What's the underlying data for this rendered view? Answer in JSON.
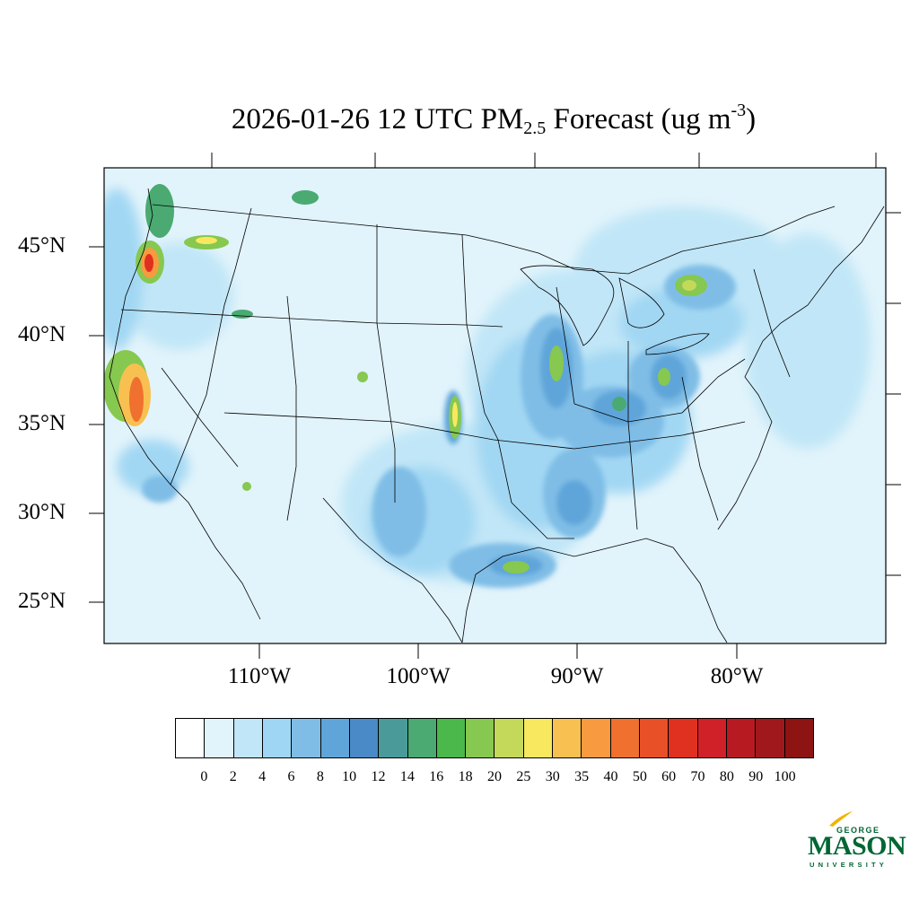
{
  "title": {
    "date_time": "2026-01-26 12 UTC PM",
    "sub": "2.5",
    "mid": " Forecast (ug m",
    "sup": "-3",
    "end": ")"
  },
  "lat_labels": [
    "45°N",
    "40°N",
    "35°N",
    "30°N",
    "25°N"
  ],
  "lon_labels": [
    "110°W",
    "100°W",
    "90°W",
    "80°W"
  ],
  "colorbar": {
    "colors": [
      "#ffffff",
      "#e1f3fb",
      "#c0e6f7",
      "#9fd6f3",
      "#7fbde6",
      "#5fa5d9",
      "#4a8ac6",
      "#4a9a9a",
      "#4aaa72",
      "#4ab84a",
      "#86c850",
      "#c4d85a",
      "#f8e860",
      "#f8c050",
      "#f89a40",
      "#f07030",
      "#e85028",
      "#e03020",
      "#d02028",
      "#b81a22",
      "#a0181c",
      "#8e1414"
    ],
    "labels": [
      "0",
      "2",
      "4",
      "6",
      "8",
      "10",
      "12",
      "14",
      "16",
      "18",
      "20",
      "25",
      "30",
      "35",
      "40",
      "50",
      "60",
      "70",
      "80",
      "90",
      "100"
    ]
  },
  "logo": {
    "top": "GEORGE",
    "main": "MASON",
    "bottom": "UNIVERSITY"
  }
}
